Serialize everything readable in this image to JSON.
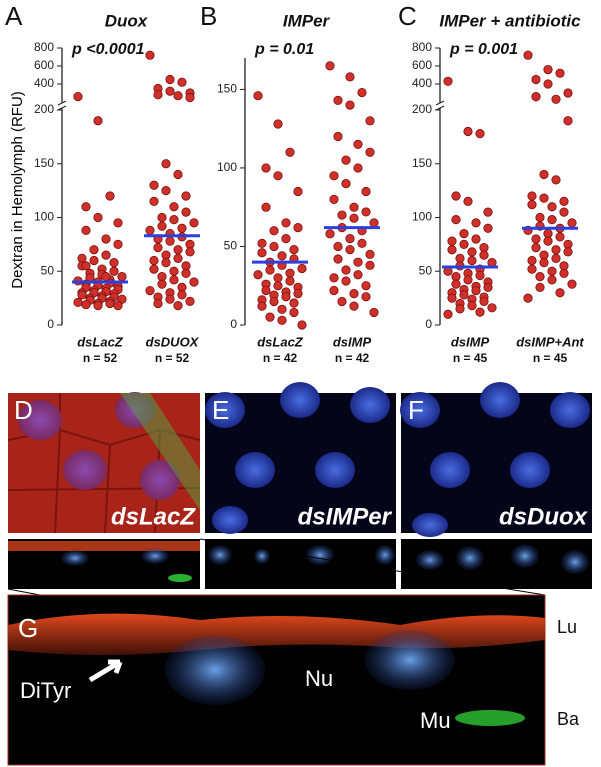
{
  "chart_data": [
    {
      "type": "strip",
      "panel": "A",
      "title": "Duox",
      "annotation": "p <0.0001",
      "ylabel": "Dextran in Hemolymph (RFU)",
      "categories": [
        "dsLacZ",
        "dsDUOX"
      ],
      "category_notes": [
        "n = 52",
        "n = 52"
      ],
      "values": [
        [
          260,
          190,
          120,
          110,
          100,
          95,
          88,
          80,
          75,
          70,
          65,
          62,
          60,
          58,
          55,
          52,
          50,
          48,
          47,
          45,
          44,
          42,
          41,
          40,
          39,
          38,
          37,
          36,
          35,
          34,
          33,
          32,
          31,
          30,
          30,
          29,
          28,
          27,
          26,
          25,
          25,
          24,
          23,
          22,
          21,
          20,
          20,
          19,
          18,
          18,
          55,
          45
        ],
        [
          720,
          450,
          420,
          350,
          320,
          300,
          280,
          270,
          250,
          150,
          140,
          130,
          125,
          120,
          115,
          110,
          105,
          100,
          98,
          95,
          92,
          90,
          88,
          85,
          82,
          80,
          78,
          75,
          72,
          70,
          68,
          65,
          62,
          60,
          58,
          55,
          52,
          50,
          48,
          45,
          42,
          40,
          38,
          35,
          32,
          30,
          28,
          26,
          24,
          22,
          20,
          18
        ]
      ],
      "means": [
        40,
        83
      ],
      "color": "#d0302a",
      "mean_color": "#2a3fe0",
      "ylim": [
        0,
        800
      ],
      "y_break": 200,
      "yticks": [
        0,
        50,
        100,
        150,
        200,
        400,
        600,
        800
      ]
    },
    {
      "type": "strip",
      "panel": "B",
      "title": "IMPer",
      "annotation": "p = 0.01",
      "categories": [
        "dsLacZ",
        "dsIMP"
      ],
      "category_notes": [
        "n = 42",
        "n = 42"
      ],
      "values": [
        [
          146,
          128,
          110,
          100,
          95,
          85,
          75,
          65,
          62,
          60,
          55,
          52,
          50,
          48,
          46,
          44,
          42,
          40,
          38,
          36,
          35,
          33,
          32,
          30,
          28,
          26,
          25,
          24,
          22,
          21,
          20,
          19,
          18,
          16,
          15,
          14,
          12,
          10,
          8,
          5,
          3,
          0
        ],
        [
          165,
          158,
          148,
          143,
          140,
          130,
          120,
          115,
          110,
          105,
          100,
          95,
          90,
          85,
          80,
          75,
          72,
          70,
          68,
          65,
          62,
          60,
          58,
          55,
          52,
          50,
          48,
          45,
          42,
          40,
          38,
          35,
          32,
          30,
          28,
          25,
          22,
          20,
          18,
          15,
          12,
          8
        ]
      ],
      "means": [
        40,
        62
      ],
      "color": "#d0302a",
      "mean_color": "#2a3fe0",
      "ylim": [
        0,
        170
      ],
      "yticks": [
        0,
        50,
        100,
        150
      ]
    },
    {
      "type": "strip",
      "panel": "C",
      "title": "IMPer + antibiotic",
      "annotation": "p = 0.001",
      "categories": [
        "dsIMP",
        "dsIMP+Ant"
      ],
      "category_notes": [
        "n = 45",
        "n = 45"
      ],
      "values": [
        [
          430,
          180,
          178,
          120,
          115,
          105,
          98,
          95,
          90,
          85,
          80,
          78,
          75,
          72,
          70,
          68,
          65,
          62,
          60,
          58,
          55,
          52,
          50,
          48,
          46,
          45,
          42,
          40,
          38,
          36,
          35,
          33,
          32,
          30,
          28,
          26,
          25,
          24,
          22,
          20,
          18,
          16,
          15,
          12,
          10
        ],
        [
          720,
          560,
          520,
          450,
          400,
          300,
          260,
          230,
          190,
          140,
          135,
          120,
          118,
          115,
          112,
          110,
          105,
          100,
          98,
          95,
          92,
          90,
          88,
          85,
          82,
          80,
          78,
          75,
          72,
          70,
          68,
          65,
          62,
          60,
          58,
          55,
          52,
          50,
          48,
          45,
          42,
          38,
          35,
          30,
          25
        ]
      ],
      "means": [
        54,
        90
      ],
      "color": "#d0302a",
      "mean_color": "#2a3fe0",
      "ylim": [
        0,
        800
      ],
      "y_break": 200,
      "yticks": [
        0,
        50,
        100,
        150,
        200,
        400,
        600,
        800
      ]
    }
  ],
  "images": {
    "panels": [
      {
        "letter": "D",
        "label": "dsLacZ"
      },
      {
        "letter": "E",
        "label": "dsIMPer"
      },
      {
        "letter": "F",
        "label": "dsDuox"
      }
    ],
    "zoom": {
      "letter": "G",
      "lumen": "Lu",
      "nucleus": "Nu",
      "muscle": "Mu",
      "basal": "Ba",
      "marker": "DiTyr"
    }
  }
}
